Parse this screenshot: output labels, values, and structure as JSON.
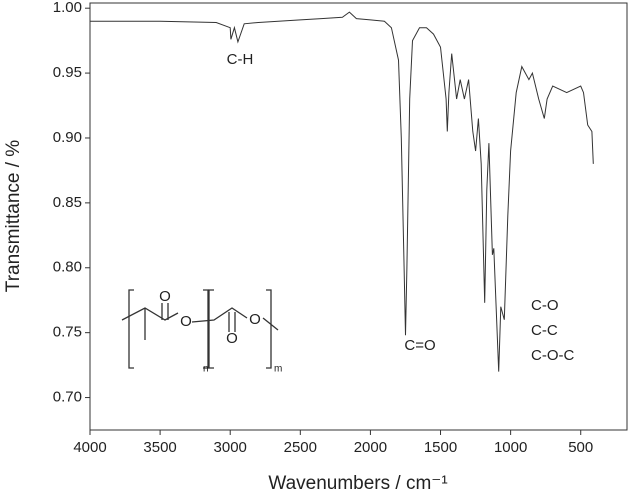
{
  "chart_data": {
    "type": "line",
    "x_label": "Wavenumbers / cm⁻¹",
    "y_label": "Transmittance / %",
    "x": [
      4000,
      3500,
      3100,
      3000,
      2995,
      2970,
      2945,
      2900,
      2800,
      2500,
      2350,
      2200,
      2150,
      2100,
      2000,
      1900,
      1850,
      1800,
      1780,
      1760,
      1750,
      1740,
      1720,
      1700,
      1650,
      1600,
      1550,
      1500,
      1460,
      1452,
      1440,
      1420,
      1385,
      1360,
      1330,
      1300,
      1270,
      1250,
      1230,
      1210,
      1185,
      1170,
      1155,
      1130,
      1120,
      1085,
      1070,
      1045,
      1020,
      1000,
      960,
      920,
      870,
      845,
      800,
      760,
      740,
      700,
      600,
      500,
      480,
      450,
      420,
      410
    ],
    "values": [
      0.99,
      0.99,
      0.989,
      0.985,
      0.976,
      0.985,
      0.974,
      0.988,
      0.989,
      0.991,
      0.992,
      0.993,
      0.997,
      0.992,
      0.991,
      0.99,
      0.985,
      0.96,
      0.9,
      0.8,
      0.748,
      0.8,
      0.93,
      0.975,
      0.985,
      0.985,
      0.98,
      0.97,
      0.93,
      0.905,
      0.935,
      0.965,
      0.93,
      0.945,
      0.93,
      0.945,
      0.905,
      0.89,
      0.915,
      0.88,
      0.773,
      0.86,
      0.896,
      0.81,
      0.815,
      0.72,
      0.77,
      0.76,
      0.84,
      0.89,
      0.935,
      0.955,
      0.945,
      0.95,
      0.93,
      0.915,
      0.93,
      0.94,
      0.935,
      0.94,
      0.935,
      0.91,
      0.905,
      0.88
    ],
    "color": "#333333",
    "xlim": [
      4000,
      170
    ],
    "xticks": [
      4000,
      3500,
      3000,
      2500,
      2000,
      1500,
      1000,
      500
    ],
    "ylim": [
      0.675,
      1.004
    ],
    "yticks": [
      {
        "value": 0.7,
        "label": "0.70"
      },
      0.75,
      {
        "value": 0.8,
        "label": "0.80"
      },
      0.85,
      {
        "value": 0.9,
        "label": "0.90"
      },
      0.95,
      {
        "value": 1.0,
        "label": "1.00"
      }
    ],
    "annotations": [
      "C-H",
      "C=O",
      "C-O",
      "C-C",
      "C-O-C"
    ],
    "inset_labels": {
      "atoms": [
        "O",
        "O",
        "O",
        "O"
      ],
      "subscripts": [
        "n",
        "m"
      ]
    }
  }
}
